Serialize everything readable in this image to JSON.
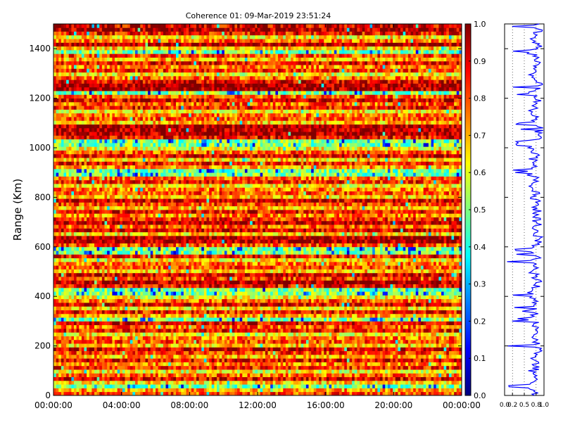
{
  "chart_data": [
    {
      "type": "heatmap",
      "title": "Coherence 01: 09-Mar-2019 23:51:24",
      "xlabel": "",
      "ylabel": "Range (Km)",
      "ylim": [
        0,
        1500
      ],
      "y_ticks": [
        {
          "value": 0,
          "label": "0"
        },
        {
          "value": 200,
          "label": "200"
        },
        {
          "value": 400,
          "label": "400"
        },
        {
          "value": 600,
          "label": "600"
        },
        {
          "value": 800,
          "label": "800"
        },
        {
          "value": 1000,
          "label": "1000"
        },
        {
          "value": 1200,
          "label": "1200"
        },
        {
          "value": 1400,
          "label": "1400"
        }
      ],
      "x_ticks": [
        {
          "value": 0,
          "label": "00:00:00"
        },
        {
          "value": 4,
          "label": "04:00:00"
        },
        {
          "value": 8,
          "label": "08:00:00"
        },
        {
          "value": 12,
          "label": "12:00:00"
        },
        {
          "value": 16,
          "label": "16:00:00"
        },
        {
          "value": 20,
          "label": "20:00:00"
        },
        {
          "value": 24,
          "label": "00:00:00"
        }
      ],
      "colorbar": {
        "range": [
          0,
          1
        ],
        "ticks": [
          {
            "value": 0.0,
            "label": "0.0"
          },
          {
            "value": 0.1,
            "label": "0.1"
          },
          {
            "value": 0.2,
            "label": "0.2"
          },
          {
            "value": 0.3,
            "label": "0.3"
          },
          {
            "value": 0.4,
            "label": "0.4"
          },
          {
            "value": 0.5,
            "label": "0.5"
          },
          {
            "value": 0.6,
            "label": "0.6"
          },
          {
            "value": 0.7,
            "label": "0.7"
          },
          {
            "value": 0.8,
            "label": "0.8"
          },
          {
            "value": 0.9,
            "label": "0.9"
          },
          {
            "value": 1.0,
            "label": "1.0"
          }
        ],
        "colormap": [
          "#00007f",
          "#0000ff",
          "#007fff",
          "#00ffff",
          "#7fff7f",
          "#ffff00",
          "#ff7f00",
          "#ff0000",
          "#7f0000"
        ]
      },
      "range_gates": {
        "count": 100,
        "spacing_km": 15,
        "coherence_pattern": [
          0.8,
          0.72,
          0.86,
          0.66,
          0.9,
          0.78,
          0.62,
          0.84,
          0.74,
          0.88,
          0.7,
          0.82,
          0.92,
          0.68,
          0.8,
          0.76,
          0.64,
          0.86,
          0.78,
          0.9
        ],
        "low_gates_km": [
          30,
          300,
          410,
          580,
          890,
          1010,
          1220,
          1380
        ],
        "high_gates_km": [
          450,
          620,
          690,
          1060,
          1080,
          1240,
          1410,
          1470
        ]
      }
    },
    {
      "type": "line",
      "xlim": [
        0,
        1
      ],
      "ylim": [
        0,
        1500
      ],
      "x_ticks": [
        {
          "value": 0.0,
          "label": "0.0"
        },
        {
          "value": 0.2,
          "label": "0.2"
        },
        {
          "value": 0.5,
          "label": "0.5"
        },
        {
          "value": 0.8,
          "label": "0.8"
        },
        {
          "value": 1.0,
          "label": "1.0"
        }
      ],
      "color": "#0000ff",
      "profile_samples": 300
    }
  ]
}
